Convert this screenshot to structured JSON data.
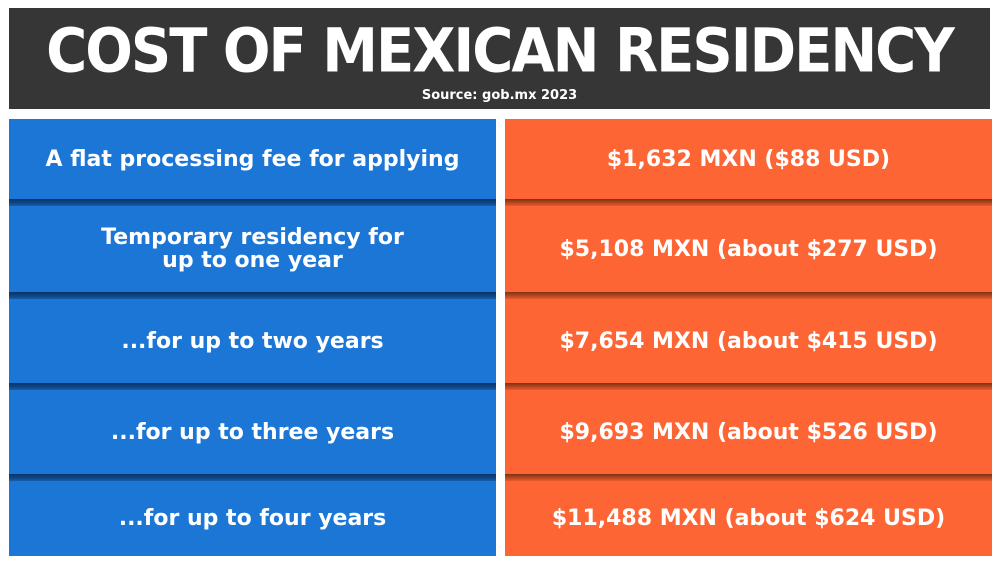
{
  "header": {
    "title": "COST OF MEXICAN RESIDENCY",
    "source": "Source: gob.mx 2023"
  },
  "rows": [
    {
      "label": "A flat processing fee for applying",
      "cost": "$1,632 MXN ($88 USD)"
    },
    {
      "label": "Temporary residency for up to one year",
      "cost": "$5,108 MXN (about $277 USD)"
    },
    {
      "label": "...for up to two years",
      "cost": "$7,654 MXN (about $415 USD)"
    },
    {
      "label": "...for up to three years",
      "cost": "$9,693 MXN (about $526 USD)"
    },
    {
      "label": "...for up to four years",
      "cost": "$11,488 MXN (about $624 USD)"
    }
  ],
  "colors": {
    "header_bg": "#363636",
    "left_column": "#1b76d6",
    "right_column": "#fe6534",
    "text": "#ffffff"
  }
}
